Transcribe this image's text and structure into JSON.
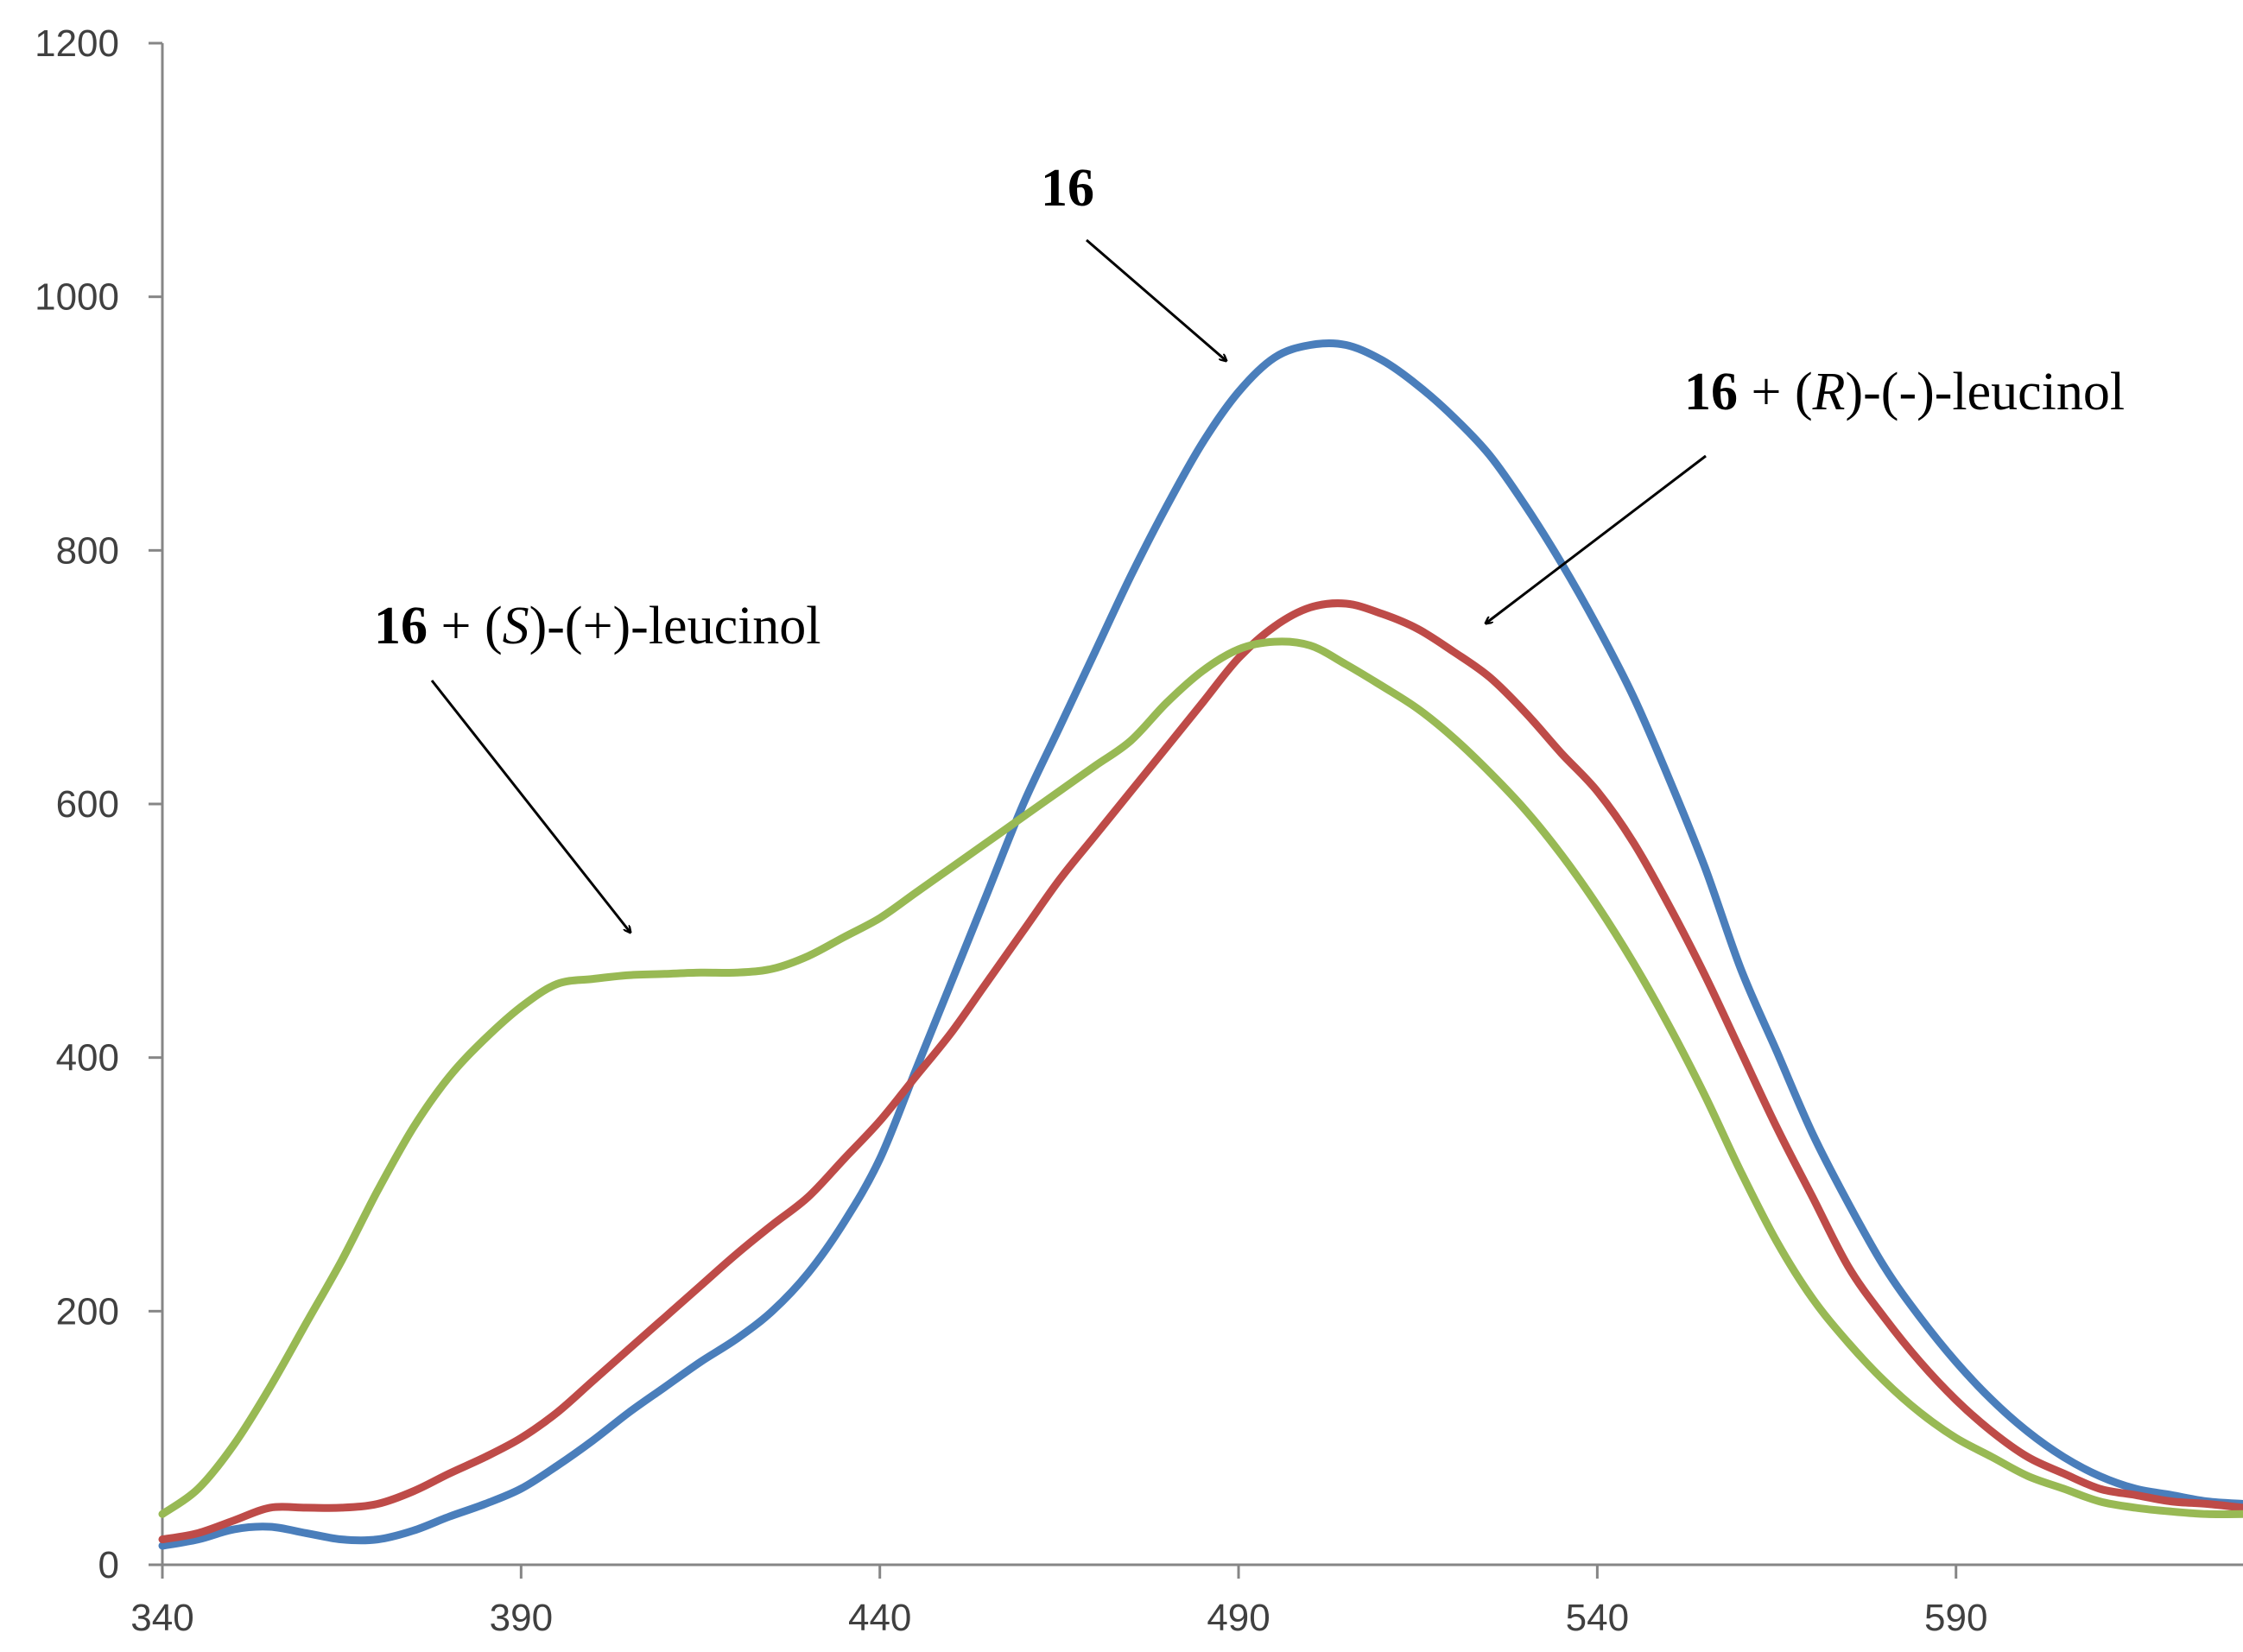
{
  "chart_data": {
    "type": "line",
    "title": "",
    "xlabel": "",
    "ylabel": "",
    "xlim": [
      340,
      630
    ],
    "ylim": [
      0,
      1200
    ],
    "xticks": [
      340,
      390,
      440,
      490,
      540,
      590
    ],
    "yticks": [
      0,
      200,
      400,
      600,
      800,
      1000,
      1200
    ],
    "grid": false,
    "legend": "none",
    "series": [
      {
        "name": "16",
        "color": "#4a7ebb",
        "x": [
          340,
          345,
          350,
          355,
          360,
          365,
          370,
          375,
          380,
          385,
          390,
          395,
          400,
          405,
          410,
          415,
          420,
          425,
          430,
          435,
          440,
          445,
          450,
          455,
          460,
          465,
          470,
          475,
          480,
          485,
          490,
          495,
          500,
          505,
          510,
          515,
          520,
          525,
          530,
          535,
          540,
          545,
          550,
          555,
          560,
          565,
          570,
          575,
          580,
          585,
          590,
          595,
          600,
          605,
          610,
          615,
          620,
          625,
          630
        ],
        "y": [
          15,
          20,
          28,
          30,
          25,
          20,
          20,
          27,
          38,
          48,
          60,
          78,
          98,
          120,
          140,
          160,
          178,
          200,
          230,
          270,
          320,
          390,
          460,
          530,
          600,
          660,
          720,
          780,
          835,
          885,
          925,
          952,
          962,
          962,
          950,
          930,
          905,
          875,
          835,
          790,
          740,
          685,
          620,
          550,
          470,
          405,
          340,
          285,
          235,
          195,
          160,
          130,
          105,
          85,
          70,
          60,
          55,
          50,
          48
        ]
      },
      {
        "name": "16 + (R)-(-)-leucinol",
        "color": "#be4b48",
        "x": [
          340,
          345,
          350,
          355,
          360,
          365,
          370,
          375,
          380,
          385,
          390,
          395,
          400,
          405,
          410,
          415,
          420,
          425,
          430,
          435,
          440,
          445,
          450,
          455,
          460,
          465,
          470,
          475,
          480,
          485,
          490,
          495,
          500,
          505,
          510,
          515,
          520,
          525,
          530,
          535,
          540,
          545,
          550,
          555,
          560,
          565,
          570,
          575,
          580,
          585,
          590,
          595,
          600,
          605,
          610,
          615,
          620,
          625,
          630
        ],
        "y": [
          20,
          25,
          35,
          45,
          45,
          45,
          48,
          58,
          72,
          85,
          100,
          120,
          145,
          170,
          195,
          220,
          245,
          268,
          290,
          320,
          350,
          385,
          420,
          460,
          500,
          540,
          575,
          610,
          645,
          680,
          715,
          740,
          755,
          758,
          750,
          738,
          720,
          700,
          672,
          640,
          610,
          570,
          520,
          465,
          405,
          345,
          290,
          235,
          195,
          160,
          130,
          105,
          85,
          72,
          60,
          55,
          50,
          48,
          45
        ]
      },
      {
        "name": "16 + (S)-(+)-leucinol",
        "color": "#98b954",
        "x": [
          340,
          345,
          350,
          355,
          360,
          365,
          370,
          375,
          380,
          385,
          390,
          395,
          400,
          405,
          410,
          415,
          420,
          425,
          430,
          435,
          440,
          445,
          450,
          455,
          460,
          465,
          470,
          475,
          480,
          485,
          490,
          495,
          500,
          505,
          510,
          515,
          520,
          525,
          530,
          535,
          540,
          545,
          550,
          555,
          560,
          565,
          570,
          575,
          580,
          585,
          590,
          595,
          600,
          605,
          610,
          615,
          620,
          625,
          630
        ],
        "y": [
          40,
          60,
          95,
          140,
          190,
          240,
          295,
          345,
          385,
          415,
          440,
          458,
          462,
          465,
          466,
          467,
          467,
          470,
          480,
          495,
          510,
          530,
          550,
          570,
          590,
          610,
          630,
          650,
          680,
          705,
          722,
          728,
          725,
          710,
          693,
          675,
          652,
          625,
          595,
          560,
          520,
          475,
          425,
          370,
          310,
          255,
          210,
          175,
          145,
          120,
          100,
          85,
          70,
          60,
          50,
          45,
          42,
          40,
          40
        ]
      }
    ],
    "annotations": [
      {
        "id": "anno-16",
        "label_bold": "16",
        "pre": "",
        "italic": "",
        "post": ""
      },
      {
        "id": "anno-r",
        "label_bold": "16",
        "pre": " + (",
        "italic": "R",
        "post": ")-(-)-leucinol"
      },
      {
        "id": "anno-s",
        "label_bold": "16",
        "pre": " + (",
        "italic": "S",
        "post": ")-(+)-leucinol"
      }
    ]
  }
}
